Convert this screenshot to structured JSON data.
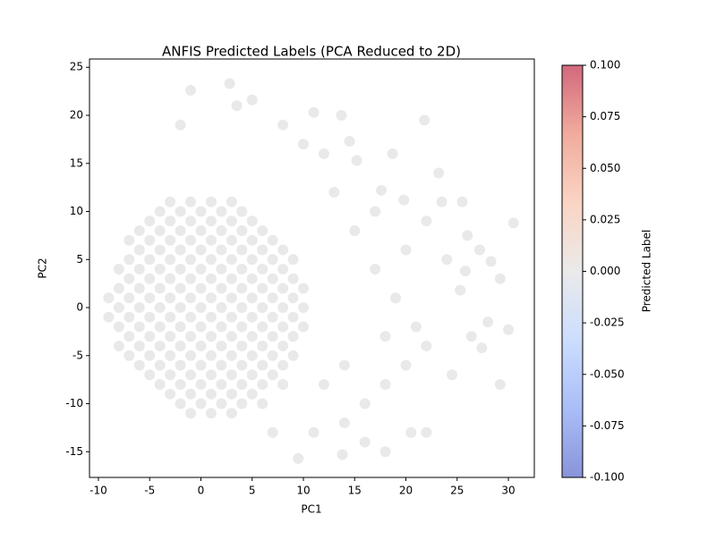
{
  "chart_data": {
    "type": "scatter",
    "title": "ANFIS Predicted Labels (PCA Reduced to 2D)",
    "x_label": "PC1",
    "y_label": "PC2",
    "colorbar_label": "Predicted Label",
    "series": [
      {
        "color": "#dcdcdc",
        "alpha": 0.6,
        "x": [
          -3,
          -1,
          1,
          3,
          -4,
          -2,
          0,
          2,
          4,
          -5,
          -3,
          -1,
          1,
          3,
          5,
          -6,
          -4,
          -2,
          0,
          2,
          4,
          6,
          -7,
          -5,
          -3,
          -1,
          1,
          3,
          5,
          7,
          -6,
          -4,
          -2,
          0,
          2,
          4,
          6,
          8,
          -7,
          -5,
          -3,
          -1,
          1,
          3,
          5,
          7,
          9,
          -8,
          -6,
          -4,
          -2,
          0,
          2,
          4,
          6,
          8,
          -7,
          -5,
          -3,
          -1,
          1,
          3,
          5,
          7,
          9,
          -8,
          -6,
          -4,
          -2,
          0,
          2,
          4,
          6,
          8,
          10,
          -9,
          -7,
          -5,
          -3,
          -1,
          1,
          3,
          5,
          7,
          9,
          -8,
          -6,
          -4,
          -2,
          0,
          2,
          4,
          6,
          8,
          10,
          -9,
          -7,
          -5,
          -3,
          -1,
          1,
          3,
          5,
          7,
          9,
          -8,
          -6,
          -4,
          -2,
          0,
          2,
          4,
          6,
          8,
          10,
          -7,
          -5,
          -3,
          -1,
          1,
          3,
          5,
          7,
          9,
          -8,
          -6,
          -4,
          -2,
          0,
          2,
          4,
          6,
          8,
          -7,
          -5,
          -3,
          -1,
          1,
          3,
          5,
          7,
          9,
          -6,
          -4,
          -2,
          0,
          2,
          4,
          6,
          8,
          -5,
          -3,
          -1,
          1,
          3,
          5,
          7,
          -4,
          -2,
          0,
          2,
          4,
          6,
          8,
          -3,
          -1,
          1,
          3,
          5,
          -2,
          0,
          2,
          4,
          6,
          -1,
          1,
          3,
          -1,
          2.8,
          5,
          3.5,
          11,
          13.7,
          21.8,
          8,
          -2,
          14.5,
          18.7,
          10,
          12,
          23.2,
          15.2,
          19.8,
          23.5,
          25.5,
          17.6,
          22,
          26,
          30.5,
          27.2,
          24,
          28.3,
          25.8,
          29.2,
          25.3,
          28,
          30,
          26.4,
          27.4,
          24.5,
          29.2,
          22,
          20.5,
          18,
          13.8,
          9.5,
          16,
          14,
          16,
          18,
          20,
          22,
          21,
          19,
          17,
          20,
          15,
          13,
          18,
          14,
          12,
          11,
          7,
          17
        ],
        "values": [
          11,
          11,
          11,
          11,
          10,
          10,
          10,
          10,
          10,
          9,
          9,
          9,
          9,
          9,
          9,
          8,
          8,
          8,
          8,
          8,
          8,
          8,
          7,
          7,
          7,
          7,
          7,
          7,
          7,
          7,
          6,
          6,
          6,
          6,
          6,
          6,
          6,
          6,
          5,
          5,
          5,
          5,
          5,
          5,
          5,
          5,
          5,
          4,
          4,
          4,
          4,
          4,
          4,
          4,
          4,
          4,
          3,
          3,
          3,
          3,
          3,
          3,
          3,
          3,
          3,
          2,
          2,
          2,
          2,
          2,
          2,
          2,
          2,
          2,
          2,
          1,
          1,
          1,
          1,
          1,
          1,
          1,
          1,
          1,
          1,
          0,
          0,
          0,
          0,
          0,
          0,
          0,
          0,
          0,
          0,
          -1,
          -1,
          -1,
          -1,
          -1,
          -1,
          -1,
          -1,
          -1,
          -1,
          -2,
          -2,
          -2,
          -2,
          -2,
          -2,
          -2,
          -2,
          -2,
          -2,
          -3,
          -3,
          -3,
          -3,
          -3,
          -3,
          -3,
          -3,
          -3,
          -4,
          -4,
          -4,
          -4,
          -4,
          -4,
          -4,
          -4,
          -4,
          -5,
          -5,
          -5,
          -5,
          -5,
          -5,
          -5,
          -5,
          -5,
          -6,
          -6,
          -6,
          -6,
          -6,
          -6,
          -6,
          -6,
          -7,
          -7,
          -7,
          -7,
          -7,
          -7,
          -7,
          -8,
          -8,
          -8,
          -8,
          -8,
          -8,
          -8,
          -9,
          -9,
          -9,
          -9,
          -9,
          -10,
          -10,
          -10,
          -10,
          -10,
          -11,
          -11,
          -11,
          22.6,
          23.3,
          21.6,
          21,
          20.3,
          20,
          19.5,
          19,
          19,
          17.3,
          16,
          17,
          16,
          14,
          15.3,
          11.2,
          11,
          11,
          12.2,
          9,
          7.5,
          8.8,
          6,
          5,
          4.8,
          3.8,
          3,
          1.8,
          -1.5,
          -2.3,
          -3,
          -4.2,
          -7,
          -8,
          -13,
          -13,
          -15,
          -15.3,
          -15.7,
          -14,
          -12,
          -10,
          -8,
          -6,
          -4,
          -2,
          1,
          4,
          6,
          8,
          12,
          -3,
          -6,
          -8,
          -13,
          -13,
          10
        ]
      }
    ],
    "xlim": [
      -10.87,
      32.53
    ],
    "ylim": [
      -17.67,
      25.86
    ],
    "xticks": [
      -10,
      -5,
      0,
      5,
      10,
      15,
      20,
      25,
      30
    ],
    "yticks": [
      -15,
      -10,
      -5,
      0,
      5,
      10,
      15,
      20,
      25
    ],
    "colorbar": {
      "lim": [
        -0.1,
        0.1
      ],
      "alpha": 0.6,
      "colormap": [
        "#3b4cc0",
        "#7092f3",
        "#aac7fd",
        "#dddcdc",
        "#f7b89c",
        "#e7745b",
        "#b40426"
      ],
      "ticks": [
        {
          "value": -0.1,
          "label": "-0.100"
        },
        {
          "value": -0.075,
          "label": "-0.075"
        },
        {
          "value": -0.05,
          "label": "-0.050"
        },
        {
          "value": -0.025,
          "label": "-0.025"
        },
        {
          "value": 0,
          "label": "0.000"
        },
        {
          "value": 0.025,
          "label": "0.025"
        },
        {
          "value": 0.05,
          "label": "0.050"
        },
        {
          "value": 0.075,
          "label": "0.075"
        },
        {
          "value": 0.1,
          "label": "0.100"
        }
      ]
    }
  }
}
